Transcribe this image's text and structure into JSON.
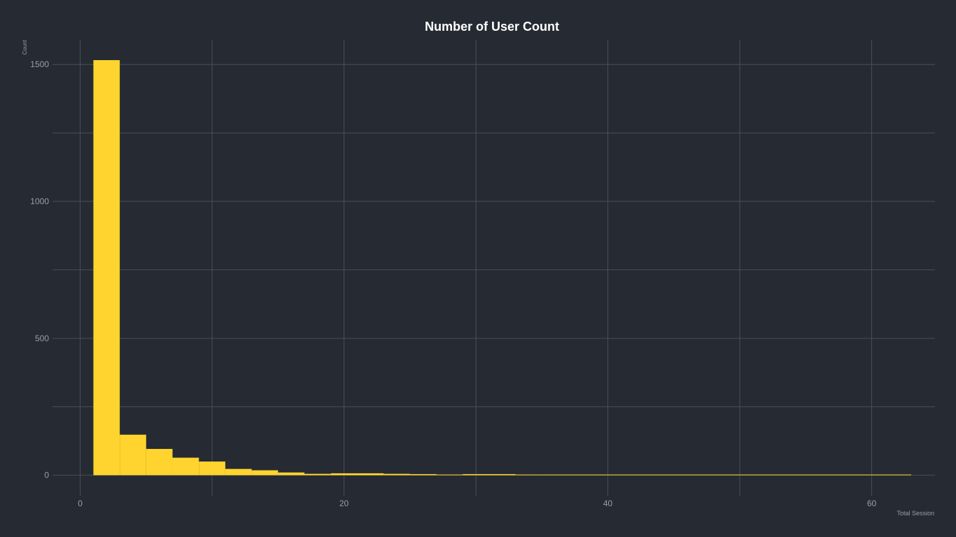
{
  "chart_data": {
    "type": "bar",
    "title": "Number of User Count",
    "xlabel": "Total Session",
    "ylabel": "Count",
    "xlim": [
      -2.1,
      64.8
    ],
    "ylim": [
      -75,
      1590
    ],
    "x_ticks": [
      0,
      20,
      40,
      60
    ],
    "x_minor_ticks": [
      10,
      30,
      50
    ],
    "y_ticks": [
      0,
      500,
      1000,
      1500
    ],
    "y_minor_ticks": [
      250,
      750,
      1250
    ],
    "grid": true,
    "legend": "none",
    "bin_width": 2,
    "bins": [
      {
        "x0": 1,
        "x1": 3,
        "count": 1516
      },
      {
        "x0": 3,
        "x1": 5,
        "count": 148
      },
      {
        "x0": 5,
        "x1": 7,
        "count": 96
      },
      {
        "x0": 7,
        "x1": 9,
        "count": 64
      },
      {
        "x0": 9,
        "x1": 11,
        "count": 50
      },
      {
        "x0": 11,
        "x1": 13,
        "count": 23
      },
      {
        "x0": 13,
        "x1": 15,
        "count": 18
      },
      {
        "x0": 15,
        "x1": 17,
        "count": 10
      },
      {
        "x0": 17,
        "x1": 19,
        "count": 5
      },
      {
        "x0": 19,
        "x1": 21,
        "count": 7
      },
      {
        "x0": 21,
        "x1": 23,
        "count": 7
      },
      {
        "x0": 23,
        "x1": 25,
        "count": 5
      },
      {
        "x0": 25,
        "x1": 27,
        "count": 4
      },
      {
        "x0": 27,
        "x1": 29,
        "count": 2
      },
      {
        "x0": 29,
        "x1": 31,
        "count": 4
      },
      {
        "x0": 31,
        "x1": 33,
        "count": 4
      },
      {
        "x0": 33,
        "x1": 35,
        "count": 2
      },
      {
        "x0": 35,
        "x1": 37,
        "count": 2
      },
      {
        "x0": 37,
        "x1": 39,
        "count": 2
      },
      {
        "x0": 39,
        "x1": 41,
        "count": 1
      },
      {
        "x0": 41,
        "x1": 43,
        "count": 1
      },
      {
        "x0": 43,
        "x1": 45,
        "count": 1
      },
      {
        "x0": 45,
        "x1": 47,
        "count": 1
      },
      {
        "x0": 47,
        "x1": 49,
        "count": 1
      },
      {
        "x0": 49,
        "x1": 51,
        "count": 1
      },
      {
        "x0": 51,
        "x1": 53,
        "count": 1
      },
      {
        "x0": 53,
        "x1": 55,
        "count": 1
      },
      {
        "x0": 55,
        "x1": 57,
        "count": 1
      },
      {
        "x0": 57,
        "x1": 59,
        "count": 1
      },
      {
        "x0": 59,
        "x1": 61,
        "count": 1
      },
      {
        "x0": 61,
        "x1": 63,
        "count": 1
      }
    ],
    "colors": {
      "background": "#262a32",
      "bar": "#ffd42e",
      "grid": "#4a4f58",
      "tick_text": "#9a9ea6",
      "title_text": "#ffffff"
    }
  }
}
